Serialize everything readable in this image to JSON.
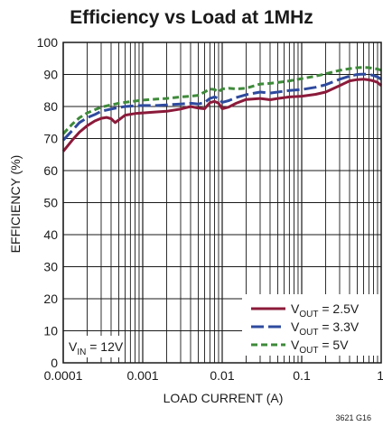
{
  "chart_data": {
    "type": "line",
    "title": "Efficiency vs Load at 1MHz",
    "xlabel": "LOAD CURRENT (A)",
    "ylabel": "EFFICIENCY (%)",
    "xscale": "log",
    "xlim": [
      0.0001,
      1
    ],
    "ylim": [
      0,
      100
    ],
    "x_tick_labels": [
      "0.0001",
      "0.001",
      "0.01",
      "0.1",
      "1"
    ],
    "y_ticks": [
      0,
      10,
      20,
      30,
      40,
      50,
      60,
      70,
      80,
      90,
      100
    ],
    "grid": true,
    "legend_position": "bottom-right",
    "annotation": {
      "main": "V",
      "sub": "IN",
      "rest": " = 12V"
    },
    "figure_id": "3621 G16",
    "series": [
      {
        "name": "VOUT = 2.5V",
        "legend": {
          "main": "V",
          "sub": "OUT",
          "rest": " = 2.5V"
        },
        "color": "#8b1a3a",
        "dash": "solid",
        "points": [
          [
            0.0001,
            66
          ],
          [
            0.00013,
            69.5
          ],
          [
            0.00016,
            72
          ],
          [
            0.0002,
            74
          ],
          [
            0.00025,
            75.5
          ],
          [
            0.0003,
            76.3
          ],
          [
            0.00035,
            76.6
          ],
          [
            0.0004,
            76.2
          ],
          [
            0.00045,
            75
          ],
          [
            0.0005,
            75.8
          ],
          [
            0.0006,
            77.3
          ],
          [
            0.0008,
            77.8
          ],
          [
            0.001,
            78
          ],
          [
            0.0015,
            78.3
          ],
          [
            0.002,
            78.5
          ],
          [
            0.003,
            79.2
          ],
          [
            0.004,
            80
          ],
          [
            0.005,
            79.5
          ],
          [
            0.006,
            79.3
          ],
          [
            0.007,
            81.2
          ],
          [
            0.008,
            81.6
          ],
          [
            0.009,
            81
          ],
          [
            0.01,
            79.3
          ],
          [
            0.012,
            79.8
          ],
          [
            0.015,
            81
          ],
          [
            0.02,
            82.2
          ],
          [
            0.03,
            82.5
          ],
          [
            0.04,
            82.1
          ],
          [
            0.05,
            82.5
          ],
          [
            0.07,
            83
          ],
          [
            0.1,
            83.2
          ],
          [
            0.15,
            83.8
          ],
          [
            0.2,
            84.5
          ],
          [
            0.3,
            86.5
          ],
          [
            0.4,
            88
          ],
          [
            0.5,
            88.4
          ],
          [
            0.6,
            88.5
          ],
          [
            0.7,
            88.3
          ],
          [
            0.8,
            88
          ],
          [
            0.9,
            87.5
          ],
          [
            1,
            86.5
          ]
        ]
      },
      {
        "name": "VOUT = 3.3V",
        "legend": {
          "main": "V",
          "sub": "OUT",
          "rest": " = 3.3V"
        },
        "color": "#2e4a9e",
        "dash": "long",
        "points": [
          [
            0.0001,
            69.5
          ],
          [
            0.00013,
            72.5
          ],
          [
            0.00016,
            75
          ],
          [
            0.0002,
            76.5
          ],
          [
            0.00025,
            77.5
          ],
          [
            0.0003,
            78.5
          ],
          [
            0.0004,
            79.2
          ],
          [
            0.0005,
            79.7
          ],
          [
            0.0006,
            80
          ],
          [
            0.0008,
            80.2
          ],
          [
            0.001,
            80.3
          ],
          [
            0.0015,
            80.3
          ],
          [
            0.002,
            80.5
          ],
          [
            0.003,
            80.8
          ],
          [
            0.004,
            81
          ],
          [
            0.005,
            80.8
          ],
          [
            0.006,
            81.2
          ],
          [
            0.007,
            82.5
          ],
          [
            0.008,
            83
          ],
          [
            0.009,
            82.5
          ],
          [
            0.01,
            81.3
          ],
          [
            0.012,
            81.8
          ],
          [
            0.015,
            82.8
          ],
          [
            0.02,
            83.7
          ],
          [
            0.03,
            84.5
          ],
          [
            0.04,
            84.2
          ],
          [
            0.05,
            84.5
          ],
          [
            0.07,
            85
          ],
          [
            0.1,
            85.3
          ],
          [
            0.15,
            86
          ],
          [
            0.2,
            86.8
          ],
          [
            0.3,
            88.5
          ],
          [
            0.4,
            89.5
          ],
          [
            0.5,
            90
          ],
          [
            0.6,
            90.1
          ],
          [
            0.7,
            90
          ],
          [
            0.8,
            89.7
          ],
          [
            0.9,
            89.2
          ],
          [
            1,
            88.5
          ]
        ]
      },
      {
        "name": "VOUT = 5V",
        "legend": {
          "main": "V",
          "sub": "OUT",
          "rest": " = 5V"
        },
        "color": "#3e8a3a",
        "dash": "short",
        "points": [
          [
            0.0001,
            71.5
          ],
          [
            0.00013,
            74.5
          ],
          [
            0.00016,
            76.5
          ],
          [
            0.0002,
            78
          ],
          [
            0.00025,
            79
          ],
          [
            0.0003,
            79.8
          ],
          [
            0.0004,
            80.5
          ],
          [
            0.0005,
            81
          ],
          [
            0.0006,
            81.3
          ],
          [
            0.0008,
            81.7
          ],
          [
            0.001,
            82
          ],
          [
            0.0015,
            82.3
          ],
          [
            0.002,
            82.5
          ],
          [
            0.003,
            83
          ],
          [
            0.004,
            83.2
          ],
          [
            0.005,
            83.5
          ],
          [
            0.006,
            84.5
          ],
          [
            0.007,
            85.5
          ],
          [
            0.008,
            85.3
          ],
          [
            0.009,
            84.5
          ],
          [
            0.01,
            85.5
          ],
          [
            0.012,
            85.7
          ],
          [
            0.015,
            85.5
          ],
          [
            0.02,
            85.7
          ],
          [
            0.03,
            87
          ],
          [
            0.04,
            87.2
          ],
          [
            0.05,
            87.5
          ],
          [
            0.07,
            88
          ],
          [
            0.1,
            88.7
          ],
          [
            0.15,
            89.5
          ],
          [
            0.2,
            90.2
          ],
          [
            0.3,
            91.3
          ],
          [
            0.4,
            91.8
          ],
          [
            0.5,
            92.1
          ],
          [
            0.6,
            92.2
          ],
          [
            0.7,
            92.1
          ],
          [
            0.8,
            91.9
          ],
          [
            0.9,
            91.7
          ],
          [
            1,
            91.3
          ]
        ]
      }
    ]
  }
}
